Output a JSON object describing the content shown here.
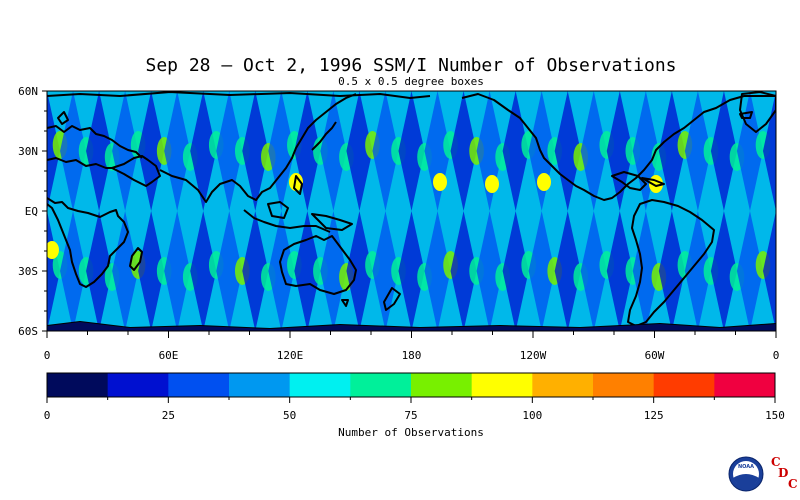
{
  "title": "Sep 28 – Oct 2, 1996 SSM/I Number of Observations",
  "subtitle": "0.5 x 0.5 degree boxes",
  "map": {
    "lat_ticks": [
      {
        "lat": 60,
        "label": "60N"
      },
      {
        "lat": 30,
        "label": "30N"
      },
      {
        "lat": 0,
        "label": "EQ"
      },
      {
        "lat": -30,
        "label": "30S"
      },
      {
        "lat": -60,
        "label": "60S"
      }
    ],
    "lon_ticks": [
      {
        "lon": 0,
        "label": "0"
      },
      {
        "lon": 60,
        "label": "60E"
      },
      {
        "lon": 120,
        "label": "120E"
      },
      {
        "lon": 180,
        "label": "180"
      },
      {
        "lon": 240,
        "label": "120W"
      },
      {
        "lon": 300,
        "label": "60W"
      },
      {
        "lon": 360,
        "label": "0"
      }
    ],
    "lon_range": [
      0,
      360
    ],
    "lat_range": [
      -60,
      60
    ]
  },
  "colorbar": {
    "label": "Number of Observations",
    "min": 0,
    "max": 150,
    "step": 12.5,
    "colors": [
      "#000a5c",
      "#0010d0",
      "#0050f0",
      "#0098f0",
      "#00f0f0",
      "#00f09a",
      "#78f000",
      "#ffff00",
      "#ffb000",
      "#ff8000",
      "#ff3c00",
      "#f00040"
    ],
    "tick_labels": [
      "0",
      "25",
      "50",
      "75",
      "100",
      "125",
      "150"
    ]
  },
  "logo": {
    "agency": "NOAA",
    "letters": [
      "C",
      "D",
      "C"
    ]
  }
}
